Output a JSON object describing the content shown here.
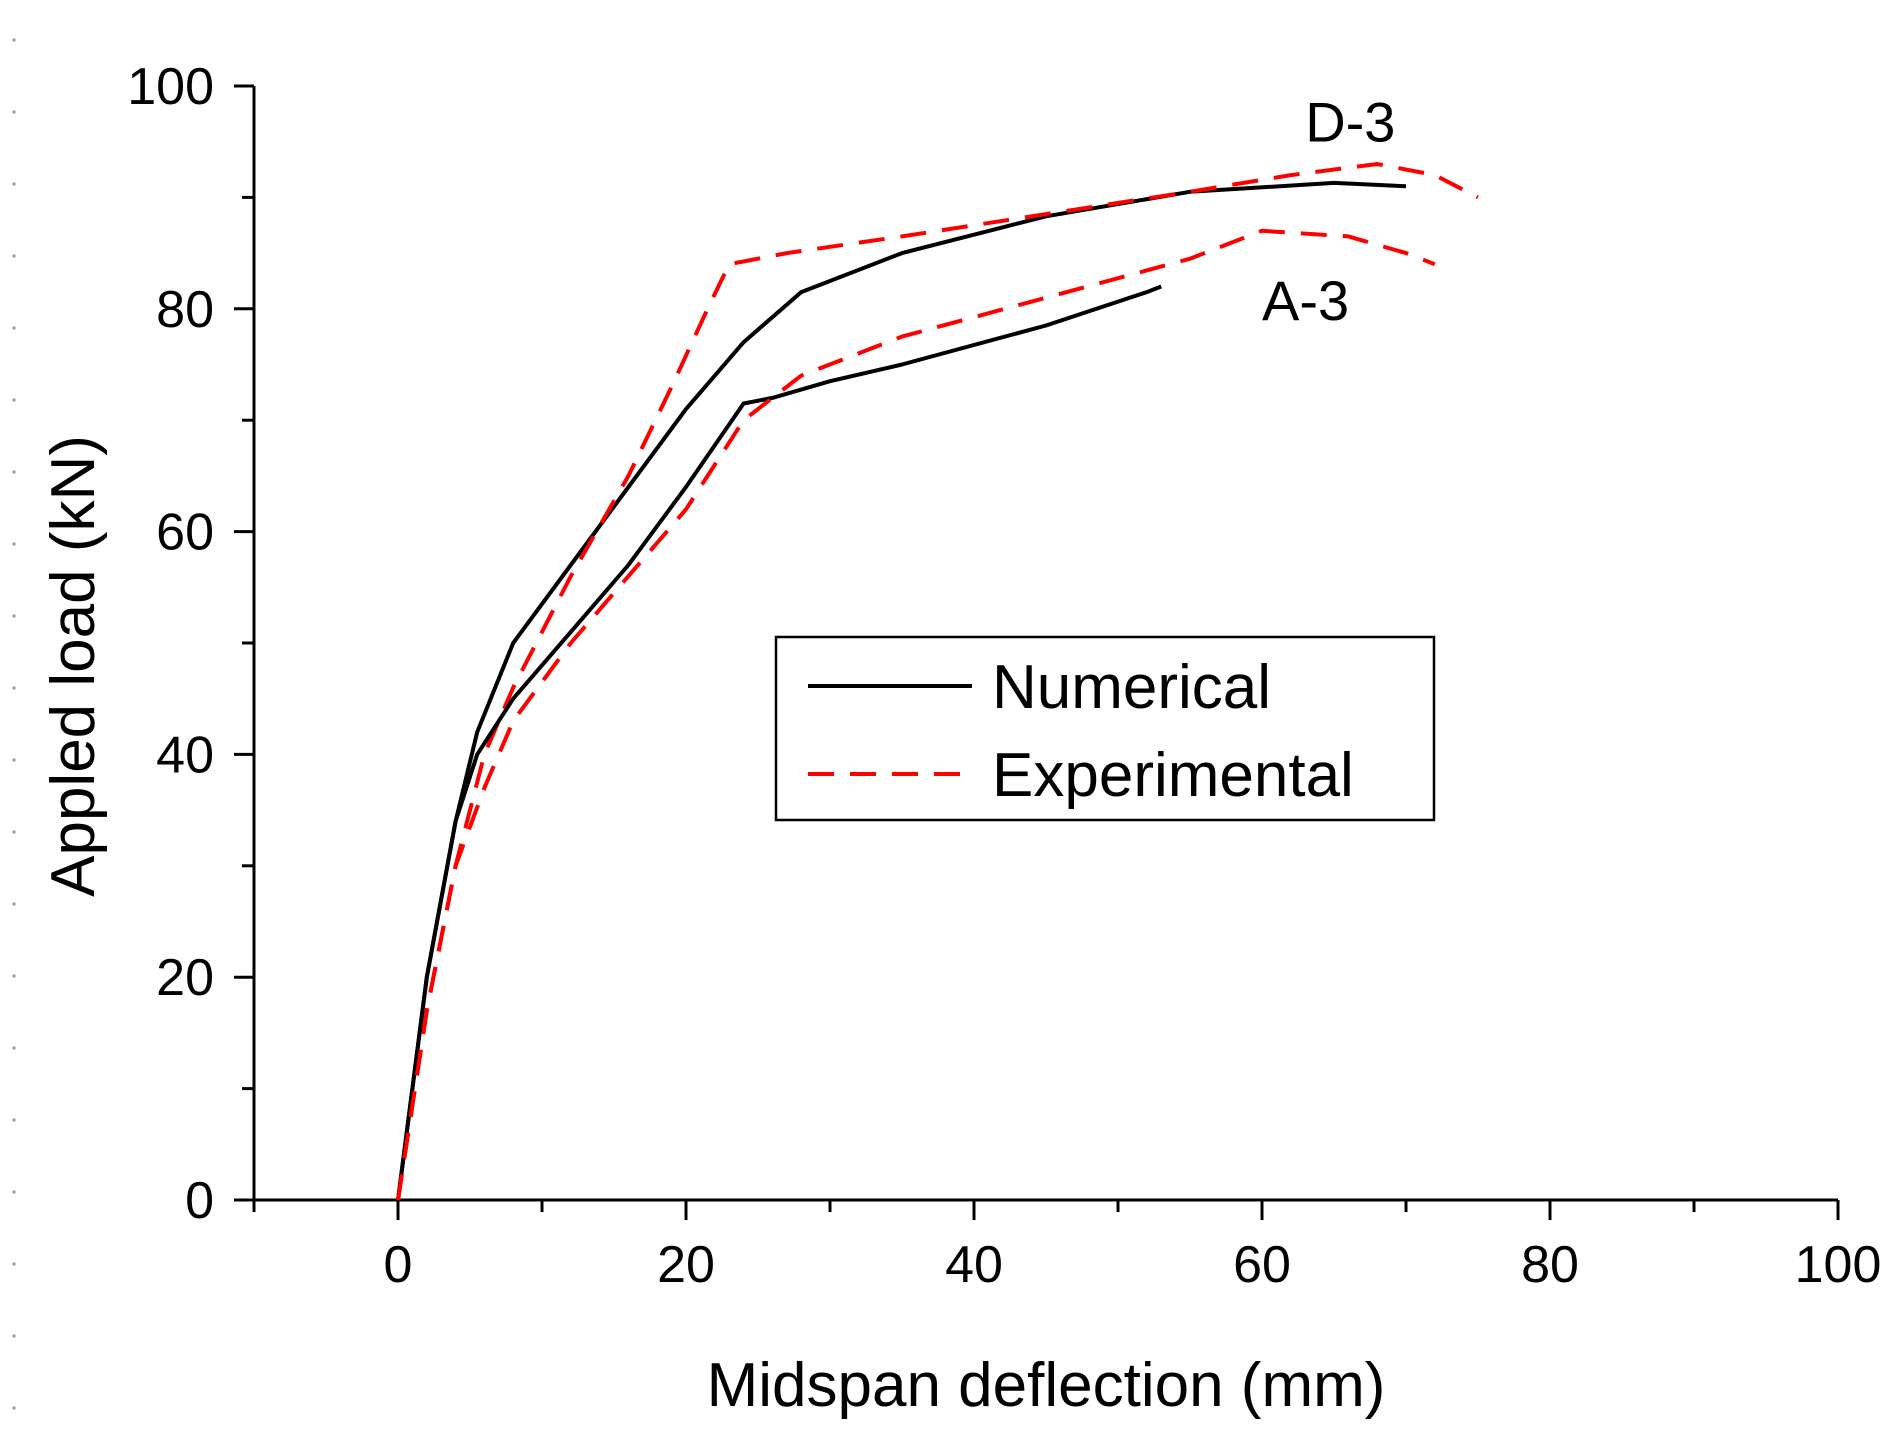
{
  "chart_data": {
    "type": "line",
    "xlabel": "Midspan deflection (mm)",
    "ylabel": "Appled load (kN)",
    "xlim": [
      -10,
      100
    ],
    "ylim": [
      0,
      100
    ],
    "x_ticks": [
      0,
      20,
      40,
      60,
      80,
      100
    ],
    "y_ticks": [
      0,
      20,
      40,
      60,
      80,
      100
    ],
    "grid": false,
    "legend_position": "center-right",
    "legend": [
      {
        "label": "Numerical",
        "style": "solid",
        "color": "#000000"
      },
      {
        "label": "Experimental",
        "style": "dashed",
        "color": "#ff0000"
      }
    ],
    "annotations": [
      {
        "text": "D-3",
        "x": 63,
        "y": 95
      },
      {
        "text": "A-3",
        "x": 60,
        "y": 79
      }
    ],
    "series": [
      {
        "name": "D-3 Numerical",
        "legend": "Numerical",
        "style": "solid",
        "color": "#000000",
        "x": [
          0,
          2,
          4,
          5.5,
          8,
          12,
          16,
          20,
          24,
          28,
          35,
          45,
          55,
          65,
          70
        ],
        "y": [
          0,
          20,
          34,
          42,
          50,
          57,
          64,
          71,
          77,
          81.5,
          85,
          88.3,
          90.5,
          91.3,
          91
        ]
      },
      {
        "name": "D-3 Experimental",
        "legend": "Experimental",
        "style": "dashed",
        "color": "#ff0000",
        "x": [
          0,
          2,
          4,
          6,
          8,
          12,
          16,
          19,
          21.5,
          23,
          27,
          35,
          45,
          55,
          62,
          68,
          72,
          75
        ],
        "y": [
          0,
          17,
          30,
          40,
          46,
          56,
          65,
          73,
          80,
          84,
          85,
          86.5,
          88.5,
          90.5,
          92,
          93,
          92,
          90
        ]
      },
      {
        "name": "A-3 Numerical",
        "legend": "Numerical",
        "style": "solid",
        "color": "#000000",
        "x": [
          0,
          2,
          4,
          5.5,
          8,
          12,
          16,
          20,
          24,
          26,
          30,
          35,
          45,
          52,
          53
        ],
        "y": [
          0,
          20,
          34,
          40,
          45,
          51,
          57,
          64,
          71.5,
          72,
          73.5,
          75,
          78.5,
          81.5,
          82
        ]
      },
      {
        "name": "A-3 Experimental",
        "legend": "Experimental",
        "style": "dashed",
        "color": "#ff0000",
        "x": [
          0,
          2,
          4,
          6,
          8,
          12,
          16,
          20,
          24,
          28,
          35,
          45,
          55,
          60,
          66,
          70,
          72
        ],
        "y": [
          0,
          17,
          30,
          37,
          43,
          50,
          56,
          62,
          70,
          74,
          77.5,
          81,
          84.5,
          87,
          86.5,
          85,
          84
        ]
      }
    ]
  }
}
